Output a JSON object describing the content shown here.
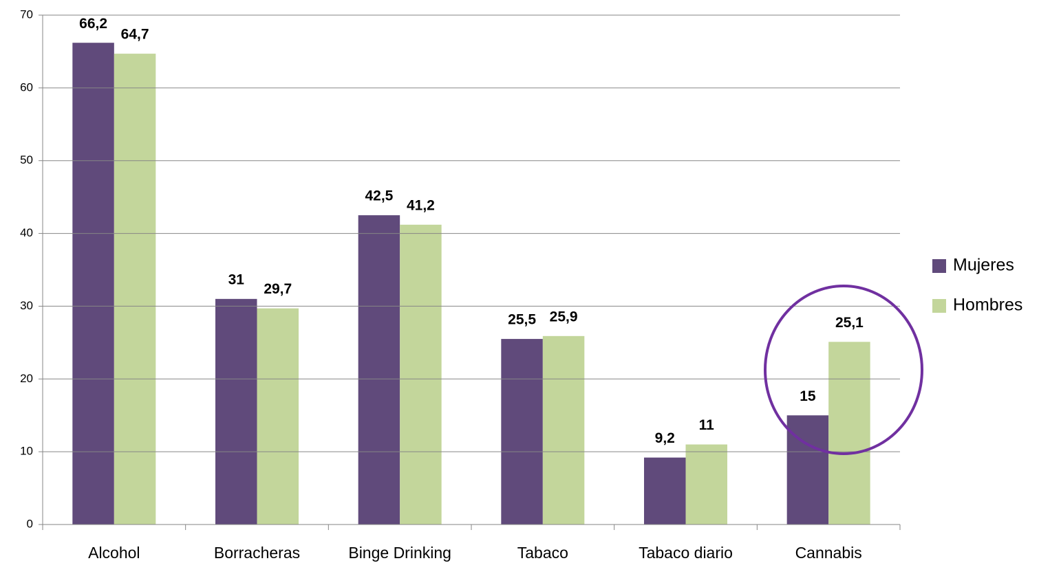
{
  "chart_data": {
    "type": "bar",
    "categories": [
      "Alcohol",
      "Borracheras",
      "Binge Drinking",
      "Tabaco",
      "Tabaco diario",
      "Cannabis"
    ],
    "series": [
      {
        "name": "Mujeres",
        "color": "#604a7b",
        "values": [
          66.2,
          31,
          42.5,
          25.5,
          9.2,
          15
        ],
        "value_labels": [
          "66,2",
          "31",
          "42,5",
          "25,5",
          "9,2",
          "15"
        ]
      },
      {
        "name": "Hombres",
        "color": "#c3d69b",
        "values": [
          64.7,
          29.7,
          41.2,
          25.9,
          11,
          25.1
        ],
        "value_labels": [
          "64,7",
          "29,7",
          "41,2",
          "25,9",
          "11",
          "25,1"
        ]
      }
    ],
    "ylim": [
      0,
      70
    ],
    "yticks": [
      0,
      10,
      20,
      30,
      40,
      50,
      60,
      70
    ],
    "grid": true,
    "legend": "right"
  }
}
